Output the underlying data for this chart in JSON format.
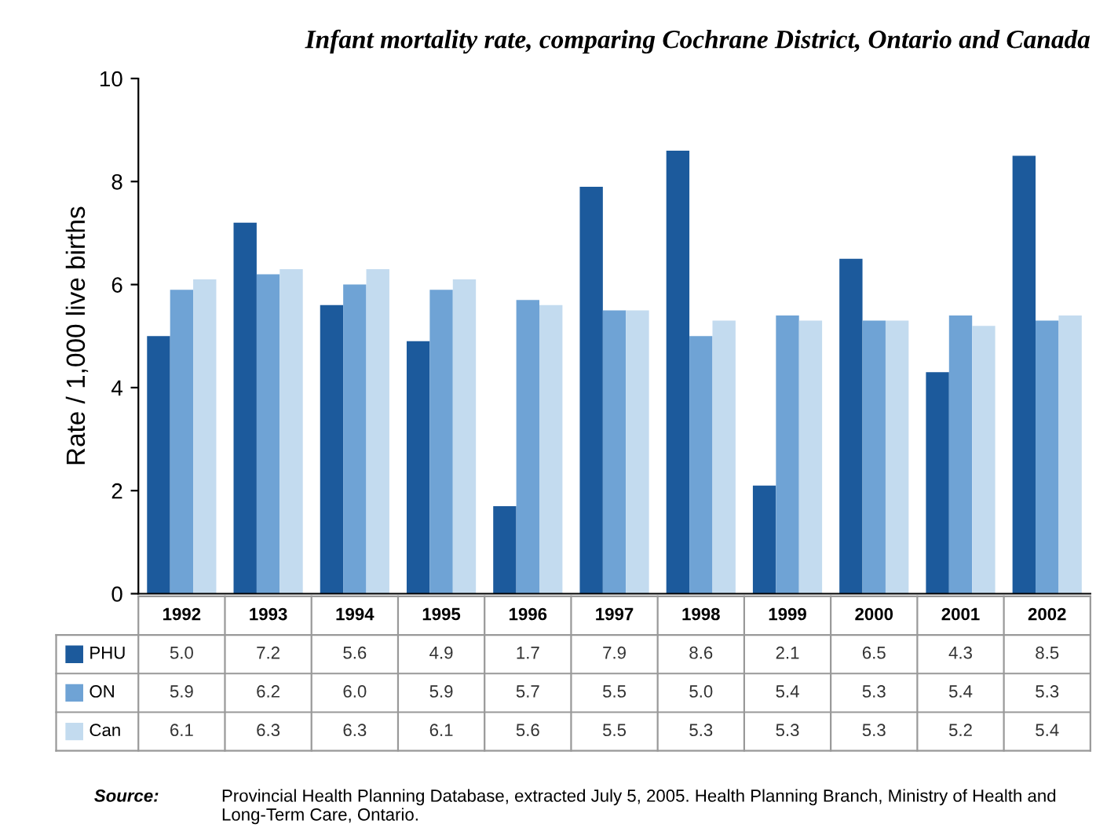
{
  "chart_data": {
    "type": "bar",
    "title": "Infant mortality rate, comparing Cochrane District, Ontario and Canada",
    "ylabel": "Rate / 1,000 live births",
    "categories": [
      "1992",
      "1993",
      "1994",
      "1995",
      "1996",
      "1997",
      "1998",
      "1999",
      "2000",
      "2001",
      "2002"
    ],
    "series": [
      {
        "name": "PHU",
        "color": "#1c5a9c",
        "values": [
          5.0,
          7.2,
          5.6,
          4.9,
          1.7,
          7.9,
          8.6,
          2.1,
          6.5,
          4.3,
          8.5
        ],
        "value_labels": [
          "5.0",
          "7.2",
          "5.6",
          "4.9",
          "1.7",
          "7.9",
          "8.6",
          "2.1",
          "6.5",
          "4.3",
          "8.5"
        ]
      },
      {
        "name": "ON",
        "color": "#6fa3d5",
        "values": [
          5.9,
          6.2,
          6.0,
          5.9,
          5.7,
          5.5,
          5.0,
          5.4,
          5.3,
          5.4,
          5.3
        ],
        "value_labels": [
          "5.9",
          "6.2",
          "6.0",
          "5.9",
          "5.7",
          "5.5",
          "5.0",
          "5.4",
          "5.3",
          "5.4",
          "5.3"
        ]
      },
      {
        "name": "Can",
        "color": "#c3dbef",
        "values": [
          6.1,
          6.3,
          6.3,
          6.1,
          5.6,
          5.5,
          5.3,
          5.3,
          5.3,
          5.2,
          5.4
        ],
        "value_labels": [
          "6.1",
          "6.3",
          "6.3",
          "6.1",
          "5.6",
          "5.5",
          "5.3",
          "5.3",
          "5.3",
          "5.2",
          "5.4"
        ]
      }
    ],
    "ylim": [
      0,
      10
    ],
    "yticks": [
      0,
      2,
      4,
      6,
      8,
      10
    ],
    "grid": false,
    "legend": "bottom left",
    "annotations": [
      "Source:",
      "Provincial Health Planning Database, extracted July 5, 2005. Health Planning Branch, Ministry of Health and Long-Term Care, Ontario."
    ]
  }
}
